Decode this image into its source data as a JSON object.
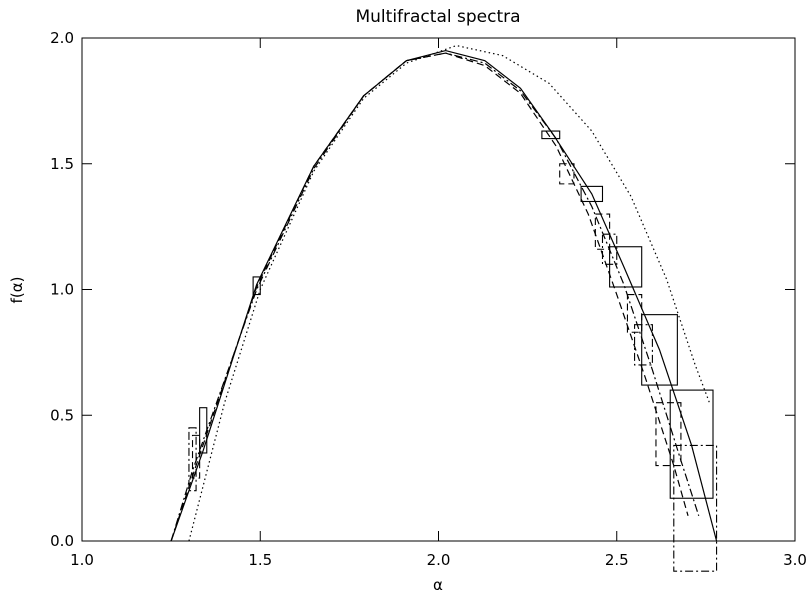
{
  "chart_data": {
    "type": "line",
    "title": "Multifractal spectra",
    "x_label": "α",
    "y_label": "f(α)",
    "xlim": [
      1.0,
      3.0
    ],
    "ylim": [
      0.0,
      2.0
    ],
    "xticks": [
      {
        "value": 1.0,
        "label": "1.0"
      },
      {
        "value": 1.5,
        "label": "1.5"
      },
      {
        "value": 2.0,
        "label": "2.0"
      },
      {
        "value": 2.5,
        "label": "2.5"
      },
      {
        "value": 3.0,
        "label": "3.0"
      }
    ],
    "yticks": [
      {
        "value": 0.0,
        "label": "0.0"
      },
      {
        "value": 0.5,
        "label": "0.5"
      },
      {
        "value": 1.0,
        "label": "1.0"
      },
      {
        "value": 1.5,
        "label": "1.5"
      },
      {
        "value": 2.0,
        "label": "2.0"
      }
    ],
    "series": [
      {
        "color": "#000000",
        "dash": "solid",
        "x": [
          1.25,
          1.34,
          1.49,
          1.65,
          1.79,
          1.91,
          2.02,
          2.13,
          2.23,
          2.32,
          2.43,
          2.52,
          2.62,
          2.71,
          2.78
        ],
        "values": [
          0.0,
          0.36,
          1.02,
          1.49,
          1.77,
          1.91,
          1.95,
          1.91,
          1.8,
          1.62,
          1.38,
          1.09,
          0.76,
          0.38,
          0.0
        ],
        "box_x": [
          [
            1.33,
            1.35
          ],
          [
            1.48,
            1.5
          ],
          [
            2.29,
            2.34
          ],
          [
            2.4,
            2.46
          ],
          [
            2.48,
            2.57
          ],
          [
            2.57,
            2.67
          ],
          [
            2.65,
            2.77
          ]
        ],
        "box_y": [
          [
            0.35,
            0.53
          ],
          [
            0.98,
            1.05
          ],
          [
            1.6,
            1.63
          ],
          [
            1.35,
            1.41
          ],
          [
            1.01,
            1.17
          ],
          [
            0.62,
            0.9
          ],
          [
            0.17,
            0.6
          ]
        ]
      },
      {
        "color": "#000000",
        "dash": "dashed",
        "x": [
          1.25,
          1.32,
          1.49,
          1.65,
          1.79,
          1.91,
          2.02,
          2.13,
          2.23,
          2.33,
          2.42,
          2.5,
          2.58,
          2.66,
          2.7
        ],
        "values": [
          0.0,
          0.3,
          1.01,
          1.49,
          1.77,
          1.91,
          1.94,
          1.89,
          1.78,
          1.57,
          1.3,
          0.98,
          0.65,
          0.3,
          0.1
        ],
        "box_x": [
          [
            1.31,
            1.33
          ],
          [
            2.34,
            2.38
          ],
          [
            2.44,
            2.48
          ],
          [
            2.53,
            2.57
          ],
          [
            2.61,
            2.68
          ]
        ],
        "box_y": [
          [
            0.25,
            0.42
          ],
          [
            1.42,
            1.5
          ],
          [
            1.16,
            1.3
          ],
          [
            0.83,
            0.98
          ],
          [
            0.3,
            0.55
          ]
        ]
      },
      {
        "color": "#000000",
        "dash": "dashdot",
        "x": [
          1.25,
          1.31,
          1.49,
          1.65,
          1.79,
          1.91,
          2.02,
          2.13,
          2.23,
          2.33,
          2.43,
          2.52,
          2.6,
          2.68,
          2.73
        ],
        "values": [
          0.0,
          0.28,
          1.0,
          1.48,
          1.77,
          1.91,
          1.94,
          1.9,
          1.79,
          1.6,
          1.33,
          1.02,
          0.68,
          0.32,
          0.1
        ],
        "box_x": [
          [
            1.3,
            1.32
          ],
          [
            2.46,
            2.5
          ],
          [
            2.55,
            2.6
          ],
          [
            2.66,
            2.78
          ]
        ],
        "box_y": [
          [
            0.2,
            0.45
          ],
          [
            1.1,
            1.22
          ],
          [
            0.7,
            0.86
          ],
          [
            -0.12,
            0.38
          ]
        ]
      },
      {
        "color": "#000000",
        "dash": "dotted",
        "x": [
          1.3,
          1.4,
          1.5,
          1.65,
          1.79,
          1.91,
          2.05,
          2.18,
          2.31,
          2.43,
          2.54,
          2.64,
          2.72,
          2.76
        ],
        "values": [
          0.0,
          0.55,
          1.0,
          1.47,
          1.76,
          1.9,
          1.97,
          1.93,
          1.82,
          1.63,
          1.37,
          1.04,
          0.7,
          0.55
        ]
      }
    ]
  }
}
